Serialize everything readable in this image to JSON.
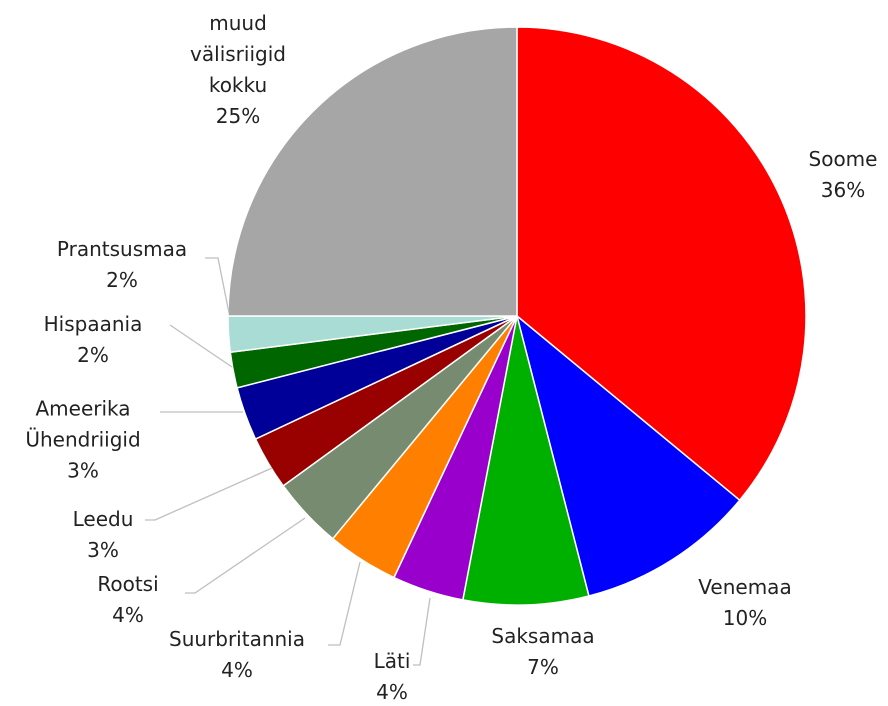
{
  "chart_data": {
    "type": "pie",
    "categories": [
      "Soome",
      "Venemaa",
      "Saksamaa",
      "Läti",
      "Suurbritannia",
      "Rootsi",
      "Leedu",
      "Ameerika Ühendriigid",
      "Hispaania",
      "Prantsusmaa",
      "muud välisriigid kokku"
    ],
    "values": [
      36,
      10,
      7,
      4,
      4,
      4,
      3,
      3,
      2,
      2,
      25
    ],
    "value_labels": [
      "36%",
      "10%",
      "7%",
      "4%",
      "4%",
      "4%",
      "3%",
      "3%",
      "2%",
      "2%",
      "25%"
    ],
    "colors": [
      "#ff0000",
      "#0000ff",
      "#00b000",
      "#9900cc",
      "#ff8000",
      "#778b70",
      "#990000",
      "#000099",
      "#006600",
      "#a8dcd4",
      "#a6a6a6"
    ]
  }
}
